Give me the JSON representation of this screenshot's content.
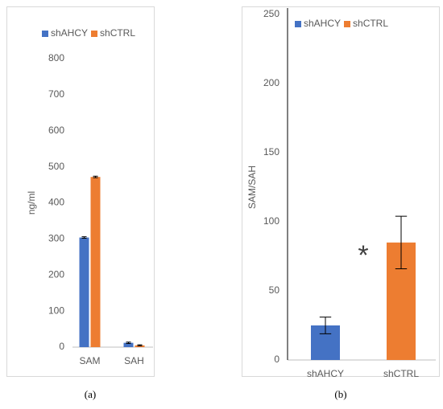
{
  "chart_data": [
    {
      "type": "grouped-bar",
      "caption": "(a)",
      "ylabel": "ng/ml",
      "categories": [
        "SAM",
        "SAH"
      ],
      "series": [
        {
          "name": "shAHCY",
          "color": "#4472c4",
          "values": [
            304,
            12
          ],
          "errors": [
            2,
            2
          ]
        },
        {
          "name": "shCTRL",
          "color": "#ed7d31",
          "values": [
            472,
            5
          ],
          "errors": [
            2,
            1.5
          ]
        }
      ],
      "ylim": [
        0,
        800
      ],
      "yticks": [
        0,
        100,
        200,
        300,
        400,
        500,
        600,
        700,
        800
      ]
    },
    {
      "type": "bar",
      "caption": "(b)",
      "ylabel": "SAM/SAH",
      "categories": [
        "shAHCY",
        "shCTRL"
      ],
      "values": [
        25,
        85
      ],
      "errors": [
        6,
        19
      ],
      "colors": [
        "#4472c4",
        "#ed7d31"
      ],
      "annotations": [
        {
          "text": "*"
        }
      ],
      "ylim": [
        0,
        250
      ],
      "yticks": [
        0,
        50,
        100,
        150,
        200,
        250
      ]
    }
  ]
}
